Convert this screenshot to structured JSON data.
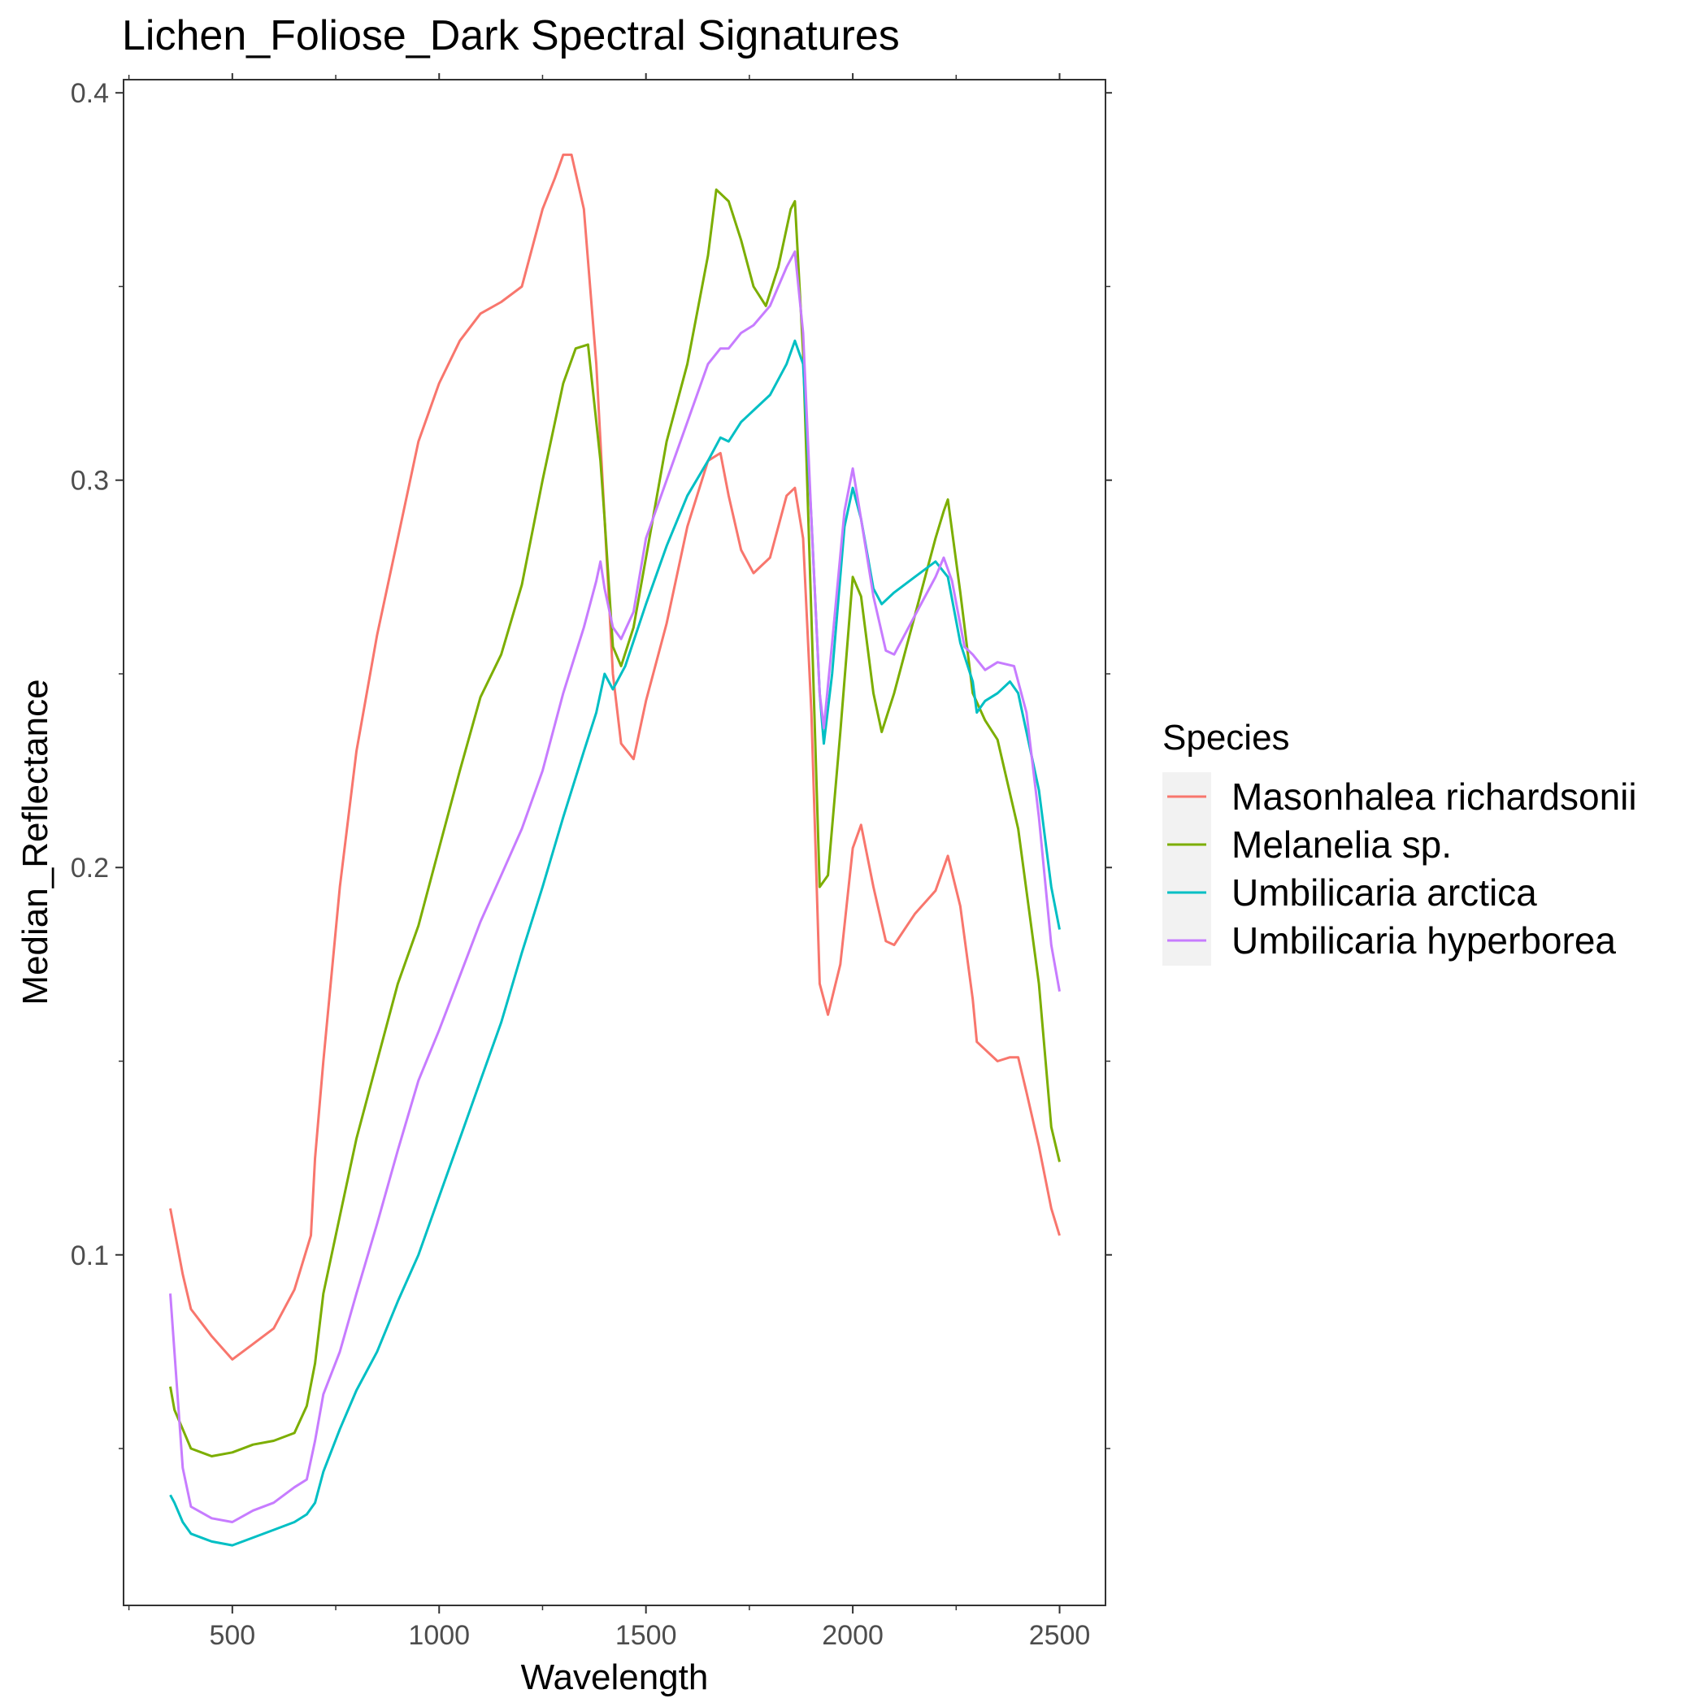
{
  "chart_data": {
    "type": "line",
    "title": "Lichen_Foliose_Dark Spectral Signatures",
    "xlabel": "Wavelength",
    "ylabel": "Median_Reflectance",
    "xlim": [
      237,
      2611
    ],
    "ylim": [
      0.0095,
      0.4034
    ],
    "xticks": [
      500,
      1000,
      1500,
      2000,
      2500
    ],
    "xtick_labels": [
      "500",
      "1000",
      "1500",
      "2000",
      "2500"
    ],
    "yticks": [
      0.1,
      0.2,
      0.3,
      0.4
    ],
    "ytick_labels": [
      "0.1",
      "0.2",
      "0.3",
      "0.4"
    ],
    "grid": false,
    "legend": {
      "title": "Species",
      "position": "right"
    },
    "series": [
      {
        "name": "Masonhalea richardsonii",
        "color": "#F8766D",
        "x": [
          350,
          380,
          400,
          450,
          500,
          550,
          600,
          650,
          690,
          700,
          720,
          760,
          800,
          850,
          900,
          950,
          1000,
          1050,
          1100,
          1150,
          1200,
          1250,
          1280,
          1300,
          1320,
          1350,
          1380,
          1400,
          1420,
          1440,
          1470,
          1500,
          1550,
          1600,
          1650,
          1680,
          1700,
          1730,
          1760,
          1800,
          1840,
          1860,
          1880,
          1900,
          1920,
          1940,
          1970,
          2000,
          2020,
          2050,
          2080,
          2100,
          2150,
          2200,
          2230,
          2260,
          2290,
          2300,
          2320,
          2350,
          2380,
          2400,
          2420,
          2450,
          2480,
          2500
        ],
        "y": [
          0.112,
          0.095,
          0.086,
          0.079,
          0.073,
          0.077,
          0.081,
          0.091,
          0.105,
          0.125,
          0.15,
          0.195,
          0.23,
          0.26,
          0.285,
          0.31,
          0.325,
          0.336,
          0.343,
          0.346,
          0.35,
          0.37,
          0.378,
          0.384,
          0.384,
          0.37,
          0.33,
          0.29,
          0.25,
          0.232,
          0.228,
          0.243,
          0.263,
          0.288,
          0.305,
          0.307,
          0.296,
          0.282,
          0.276,
          0.28,
          0.296,
          0.298,
          0.285,
          0.24,
          0.17,
          0.162,
          0.175,
          0.205,
          0.211,
          0.195,
          0.181,
          0.18,
          0.188,
          0.194,
          0.203,
          0.19,
          0.166,
          0.155,
          0.153,
          0.15,
          0.151,
          0.151,
          0.142,
          0.128,
          0.112,
          0.105
        ]
      },
      {
        "name": "Melanelia sp.",
        "color": "#7CAE00",
        "x": [
          350,
          360,
          380,
          400,
          450,
          500,
          550,
          600,
          650,
          680,
          700,
          720,
          760,
          800,
          850,
          900,
          950,
          1000,
          1050,
          1100,
          1150,
          1200,
          1250,
          1300,
          1330,
          1360,
          1390,
          1400,
          1420,
          1440,
          1470,
          1500,
          1550,
          1600,
          1650,
          1670,
          1700,
          1730,
          1760,
          1790,
          1820,
          1850,
          1860,
          1880,
          1900,
          1920,
          1940,
          1970,
          2000,
          2020,
          2050,
          2070,
          2100,
          2150,
          2200,
          2220,
          2230,
          2260,
          2290,
          2320,
          2350,
          2400,
          2450,
          2480,
          2500
        ],
        "y": [
          0.066,
          0.06,
          0.055,
          0.05,
          0.048,
          0.049,
          0.051,
          0.052,
          0.054,
          0.061,
          0.072,
          0.09,
          0.11,
          0.13,
          0.15,
          0.17,
          0.185,
          0.205,
          0.225,
          0.244,
          0.255,
          0.273,
          0.3,
          0.325,
          0.334,
          0.335,
          0.305,
          0.29,
          0.257,
          0.252,
          0.262,
          0.28,
          0.31,
          0.33,
          0.358,
          0.375,
          0.372,
          0.362,
          0.35,
          0.345,
          0.355,
          0.37,
          0.372,
          0.333,
          0.265,
          0.195,
          0.198,
          0.235,
          0.275,
          0.27,
          0.245,
          0.235,
          0.245,
          0.265,
          0.285,
          0.292,
          0.295,
          0.271,
          0.245,
          0.238,
          0.233,
          0.21,
          0.17,
          0.133,
          0.124
        ]
      },
      {
        "name": "Umbilicaria arctica",
        "color": "#00BFC4",
        "x": [
          350,
          360,
          380,
          400,
          450,
          500,
          550,
          600,
          650,
          680,
          700,
          720,
          760,
          800,
          850,
          900,
          950,
          1000,
          1050,
          1100,
          1150,
          1200,
          1250,
          1300,
          1350,
          1380,
          1400,
          1420,
          1450,
          1500,
          1550,
          1600,
          1650,
          1680,
          1700,
          1730,
          1760,
          1800,
          1840,
          1860,
          1880,
          1900,
          1920,
          1930,
          1950,
          1980,
          2000,
          2020,
          2050,
          2070,
          2100,
          2150,
          2200,
          2230,
          2260,
          2290,
          2300,
          2320,
          2350,
          2380,
          2400,
          2450,
          2480,
          2500
        ],
        "y": [
          0.038,
          0.036,
          0.031,
          0.028,
          0.026,
          0.025,
          0.027,
          0.029,
          0.031,
          0.033,
          0.036,
          0.044,
          0.055,
          0.065,
          0.075,
          0.088,
          0.1,
          0.115,
          0.13,
          0.145,
          0.16,
          0.178,
          0.195,
          0.213,
          0.23,
          0.24,
          0.25,
          0.246,
          0.252,
          0.268,
          0.283,
          0.296,
          0.305,
          0.311,
          0.31,
          0.315,
          0.318,
          0.322,
          0.33,
          0.336,
          0.33,
          0.29,
          0.245,
          0.232,
          0.25,
          0.288,
          0.298,
          0.29,
          0.272,
          0.268,
          0.271,
          0.275,
          0.279,
          0.275,
          0.258,
          0.248,
          0.24,
          0.243,
          0.245,
          0.248,
          0.245,
          0.22,
          0.195,
          0.184
        ]
      },
      {
        "name": "Umbilicaria hyperborea",
        "color": "#C77CFF",
        "x": [
          350,
          360,
          380,
          400,
          450,
          500,
          550,
          600,
          650,
          680,
          700,
          720,
          760,
          800,
          850,
          900,
          950,
          1000,
          1050,
          1100,
          1150,
          1200,
          1250,
          1300,
          1350,
          1380,
          1390,
          1400,
          1420,
          1440,
          1470,
          1500,
          1550,
          1600,
          1650,
          1680,
          1700,
          1730,
          1760,
          1800,
          1840,
          1860,
          1880,
          1900,
          1920,
          1930,
          1950,
          1980,
          2000,
          2020,
          2050,
          2080,
          2100,
          2150,
          2200,
          2220,
          2240,
          2270,
          2290,
          2320,
          2350,
          2390,
          2420,
          2450,
          2480,
          2500
        ],
        "y": [
          0.09,
          0.075,
          0.045,
          0.035,
          0.032,
          0.031,
          0.034,
          0.036,
          0.04,
          0.042,
          0.052,
          0.064,
          0.075,
          0.09,
          0.108,
          0.127,
          0.145,
          0.158,
          0.172,
          0.186,
          0.198,
          0.21,
          0.225,
          0.245,
          0.262,
          0.274,
          0.279,
          0.272,
          0.262,
          0.259,
          0.266,
          0.285,
          0.3,
          0.315,
          0.33,
          0.334,
          0.334,
          0.338,
          0.34,
          0.345,
          0.355,
          0.359,
          0.338,
          0.29,
          0.245,
          0.236,
          0.258,
          0.292,
          0.303,
          0.29,
          0.27,
          0.256,
          0.255,
          0.265,
          0.275,
          0.28,
          0.274,
          0.257,
          0.255,
          0.251,
          0.253,
          0.252,
          0.24,
          0.213,
          0.18,
          0.168
        ]
      }
    ]
  }
}
